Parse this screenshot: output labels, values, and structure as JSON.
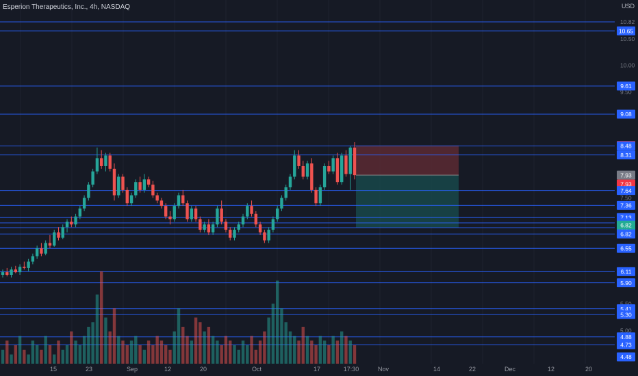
{
  "header": {
    "title": "Esperion Therapeutics, Inc., 4h, NASDAQ",
    "currency": "USD"
  },
  "colors": {
    "background": "#161a25",
    "up": "#26a69a",
    "down": "#ef5350",
    "level_line": "#2962ff",
    "risk_zone": "#5b2a33",
    "reward_zone": "#17484a"
  },
  "chart_data": {
    "type": "candlestick",
    "ylim": [
      4.4,
      11.0
    ],
    "x_tick_labels": [
      "15",
      "23",
      "Sep",
      "12",
      "20",
      "Oct",
      "17",
      "17:30",
      "Nov",
      "14",
      "22",
      "Dec",
      "12",
      "20"
    ],
    "y_tick_labels": [
      "10.82",
      "10.50",
      "10.00",
      "9.50",
      "7.50",
      "6.10",
      "5.50",
      "5.00"
    ],
    "price_level_lines": [
      10.82,
      10.65,
      9.61,
      9.08,
      8.48,
      8.31,
      7.64,
      7.36,
      7.13,
      7.03,
      6.94,
      6.82,
      6.55,
      6.11,
      5.9,
      5.41,
      5.3,
      4.88,
      4.73
    ],
    "axis_badges": [
      {
        "text": "10.65",
        "kind": "level"
      },
      {
        "text": "9.61",
        "kind": "level"
      },
      {
        "text": "9.08",
        "kind": "level"
      },
      {
        "text": "8.49",
        "kind": "sell"
      },
      {
        "text": "8.48",
        "kind": "level"
      },
      {
        "text": "8.31",
        "kind": "level"
      },
      {
        "text": "7.93",
        "kind": "gray"
      },
      {
        "text": "7.93",
        "kind": "sell"
      },
      {
        "text": "7.64",
        "kind": "level"
      },
      {
        "text": "7.36",
        "kind": "level"
      },
      {
        "text": "7.13",
        "kind": "level"
      },
      {
        "text": "7.03",
        "kind": "level"
      },
      {
        "text": "6.94",
        "kind": "level"
      },
      {
        "text": "6.82",
        "kind": "buy"
      },
      {
        "text": "6.82",
        "kind": "level"
      },
      {
        "text": "6.55",
        "kind": "level"
      },
      {
        "text": "6.11",
        "kind": "level"
      },
      {
        "text": "5.90",
        "kind": "level"
      },
      {
        "text": "5.41",
        "kind": "level"
      },
      {
        "text": "5.30",
        "kind": "level"
      },
      {
        "text": "4.88",
        "kind": "level"
      },
      {
        "text": "4.73",
        "kind": "level"
      },
      {
        "text": "4.48",
        "kind": "level"
      }
    ],
    "position_tool": {
      "stop": 8.49,
      "entry": 7.93,
      "target": 6.94
    },
    "candles": [
      [
        6.05,
        6.15,
        6.0,
        6.1
      ],
      [
        6.1,
        6.18,
        6.02,
        6.05
      ],
      [
        6.05,
        6.2,
        6.0,
        6.15
      ],
      [
        6.15,
        6.22,
        6.08,
        6.1
      ],
      [
        6.1,
        6.25,
        6.05,
        6.2
      ],
      [
        6.2,
        6.3,
        6.15,
        6.18
      ],
      [
        6.18,
        6.35,
        6.12,
        6.3
      ],
      [
        6.3,
        6.45,
        6.25,
        6.4
      ],
      [
        6.4,
        6.6,
        6.35,
        6.55
      ],
      [
        6.55,
        6.65,
        6.4,
        6.45
      ],
      [
        6.45,
        6.7,
        6.42,
        6.65
      ],
      [
        6.65,
        6.8,
        6.55,
        6.6
      ],
      [
        6.6,
        6.9,
        6.58,
        6.85
      ],
      [
        6.85,
        6.95,
        6.7,
        6.75
      ],
      [
        6.75,
        7.0,
        6.72,
        6.95
      ],
      [
        6.95,
        7.1,
        6.85,
        7.05
      ],
      [
        7.05,
        7.15,
        6.95,
        7.0
      ],
      [
        7.0,
        7.2,
        6.95,
        7.15
      ],
      [
        7.15,
        7.35,
        7.1,
        7.3
      ],
      [
        7.3,
        7.55,
        7.25,
        7.5
      ],
      [
        7.5,
        7.8,
        7.45,
        7.75
      ],
      [
        7.75,
        8.05,
        7.7,
        8.0
      ],
      [
        8.0,
        8.45,
        7.95,
        8.25
      ],
      [
        8.25,
        8.4,
        8.05,
        8.1
      ],
      [
        8.1,
        8.35,
        8.0,
        8.3
      ],
      [
        8.3,
        8.35,
        8.0,
        8.05
      ],
      [
        8.05,
        8.15,
        7.45,
        7.55
      ],
      [
        7.55,
        7.95,
        7.5,
        7.9
      ],
      [
        7.9,
        7.95,
        7.6,
        7.65
      ],
      [
        7.65,
        7.7,
        7.35,
        7.4
      ],
      [
        7.4,
        7.6,
        7.35,
        7.55
      ],
      [
        7.55,
        7.85,
        7.5,
        7.8
      ],
      [
        7.8,
        7.9,
        7.6,
        7.65
      ],
      [
        7.65,
        7.95,
        7.6,
        7.85
      ],
      [
        7.85,
        7.9,
        7.7,
        7.75
      ],
      [
        7.75,
        7.82,
        7.5,
        7.55
      ],
      [
        7.55,
        7.6,
        7.4,
        7.45
      ],
      [
        7.45,
        7.5,
        7.3,
        7.35
      ],
      [
        7.35,
        7.4,
        7.1,
        7.15
      ],
      [
        7.15,
        7.25,
        7.0,
        7.1
      ],
      [
        7.1,
        7.4,
        7.05,
        7.35
      ],
      [
        7.35,
        7.6,
        7.3,
        7.55
      ],
      [
        7.55,
        7.65,
        7.35,
        7.4
      ],
      [
        7.4,
        7.45,
        7.05,
        7.1
      ],
      [
        7.1,
        7.35,
        7.05,
        7.3
      ],
      [
        7.3,
        7.35,
        7.05,
        7.1
      ],
      [
        7.1,
        7.15,
        6.85,
        6.9
      ],
      [
        6.9,
        7.05,
        6.85,
        7.0
      ],
      [
        7.0,
        7.1,
        6.8,
        6.85
      ],
      [
        6.85,
        7.05,
        6.8,
        7.0
      ],
      [
        7.0,
        7.35,
        6.95,
        7.3
      ],
      [
        7.3,
        7.45,
        7.0,
        7.05
      ],
      [
        7.05,
        7.1,
        6.85,
        6.9
      ],
      [
        6.9,
        6.95,
        6.7,
        6.75
      ],
      [
        6.75,
        6.95,
        6.7,
        6.9
      ],
      [
        6.9,
        7.05,
        6.85,
        7.0
      ],
      [
        7.0,
        7.2,
        6.95,
        7.15
      ],
      [
        7.15,
        7.4,
        7.1,
        7.35
      ],
      [
        7.35,
        7.45,
        7.15,
        7.2
      ],
      [
        7.2,
        7.25,
        6.95,
        7.0
      ],
      [
        7.0,
        7.05,
        6.8,
        6.85
      ],
      [
        6.85,
        6.9,
        6.65,
        6.7
      ],
      [
        6.7,
        6.95,
        6.65,
        6.9
      ],
      [
        6.9,
        7.15,
        6.85,
        7.1
      ],
      [
        7.1,
        7.35,
        7.05,
        7.3
      ],
      [
        7.3,
        7.55,
        7.25,
        7.5
      ],
      [
        7.5,
        7.75,
        7.45,
        7.7
      ],
      [
        7.7,
        7.95,
        7.65,
        7.9
      ],
      [
        7.9,
        8.4,
        7.85,
        8.3
      ],
      [
        8.3,
        8.4,
        8.05,
        8.1
      ],
      [
        8.1,
        8.2,
        7.85,
        7.9
      ],
      [
        7.9,
        8.2,
        7.85,
        8.15
      ],
      [
        8.15,
        8.25,
        7.6,
        7.65
      ],
      [
        7.65,
        7.7,
        7.35,
        7.4
      ],
      [
        7.4,
        7.75,
        7.35,
        7.7
      ],
      [
        7.7,
        8.15,
        7.65,
        8.1
      ],
      [
        8.1,
        8.2,
        7.95,
        8.0
      ],
      [
        8.0,
        8.3,
        7.95,
        8.25
      ],
      [
        8.25,
        8.35,
        7.75,
        7.8
      ],
      [
        7.8,
        8.35,
        7.75,
        8.3
      ],
      [
        8.3,
        8.4,
        7.9,
        7.95
      ],
      [
        7.95,
        8.48,
        7.65,
        8.45
      ],
      [
        8.45,
        8.55,
        7.85,
        7.93
      ]
    ],
    "volumes": [
      3,
      5,
      2,
      4,
      6,
      3,
      2,
      5,
      4,
      3,
      6,
      4,
      2,
      5,
      3,
      4,
      7,
      5,
      4,
      6,
      8,
      9,
      15,
      20,
      10,
      7,
      12,
      6,
      5,
      4,
      5,
      6,
      4,
      3,
      5,
      4,
      6,
      5,
      4,
      3,
      7,
      12,
      8,
      6,
      5,
      10,
      9,
      7,
      8,
      6,
      5,
      4,
      6,
      5,
      4,
      3,
      5,
      4,
      6,
      3,
      5,
      7,
      10,
      13,
      18,
      12,
      9,
      7,
      6,
      5,
      8,
      6,
      5,
      4,
      6,
      5,
      4,
      6,
      5,
      7,
      6,
      5,
      4
    ]
  }
}
